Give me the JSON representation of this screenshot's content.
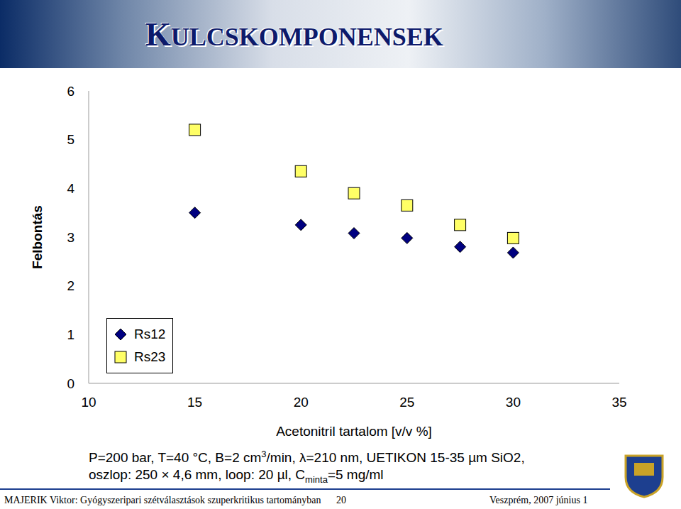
{
  "header": {
    "title": "KULCSKOMPONENSEK"
  },
  "chart_data": {
    "type": "scatter",
    "x_label": "Acetonitril tartalom [v/v %]",
    "y_label": "Felbontás",
    "x": [
      15,
      20,
      22.5,
      25,
      27.5,
      30
    ],
    "xlim": [
      10,
      35
    ],
    "xticks": [
      10,
      15,
      20,
      25,
      30,
      35
    ],
    "ylim": [
      0,
      6
    ],
    "yticks": [
      0,
      1,
      2,
      3,
      4,
      5,
      6
    ],
    "grid": false,
    "legend": "lower left",
    "series": [
      {
        "name": "Rs12",
        "color": "#000080",
        "marker": "diamond",
        "values": [
          3.5,
          3.25,
          3.08,
          2.98,
          2.8,
          2.68
        ]
      },
      {
        "name": "Rs23",
        "color": "#ffff66",
        "marker": "square",
        "values": [
          5.2,
          4.35,
          3.9,
          3.65,
          3.25,
          2.98
        ]
      }
    ]
  },
  "caption": {
    "lines": [
      [
        {
          "text": "P=200 bar, T=40 °C, B=2 cm"
        },
        {
          "text": "3",
          "position": "sup"
        },
        {
          "text": "/min, λ=210 nm, UETIKON 15-35 µm SiO2,"
        }
      ],
      [
        {
          "text": "oszlop: 250 × 4,6 mm, loop: 20 µl, C"
        },
        {
          "text": "minta",
          "position": "sub"
        },
        {
          "text": "=5 mg/ml"
        }
      ]
    ]
  },
  "footer": {
    "left": "MAJERIK Viktor: Gyógyszeripari szétválasztások szuperkritikus tartományban",
    "page": "20",
    "right": "Veszprém, 2007 június 1"
  }
}
